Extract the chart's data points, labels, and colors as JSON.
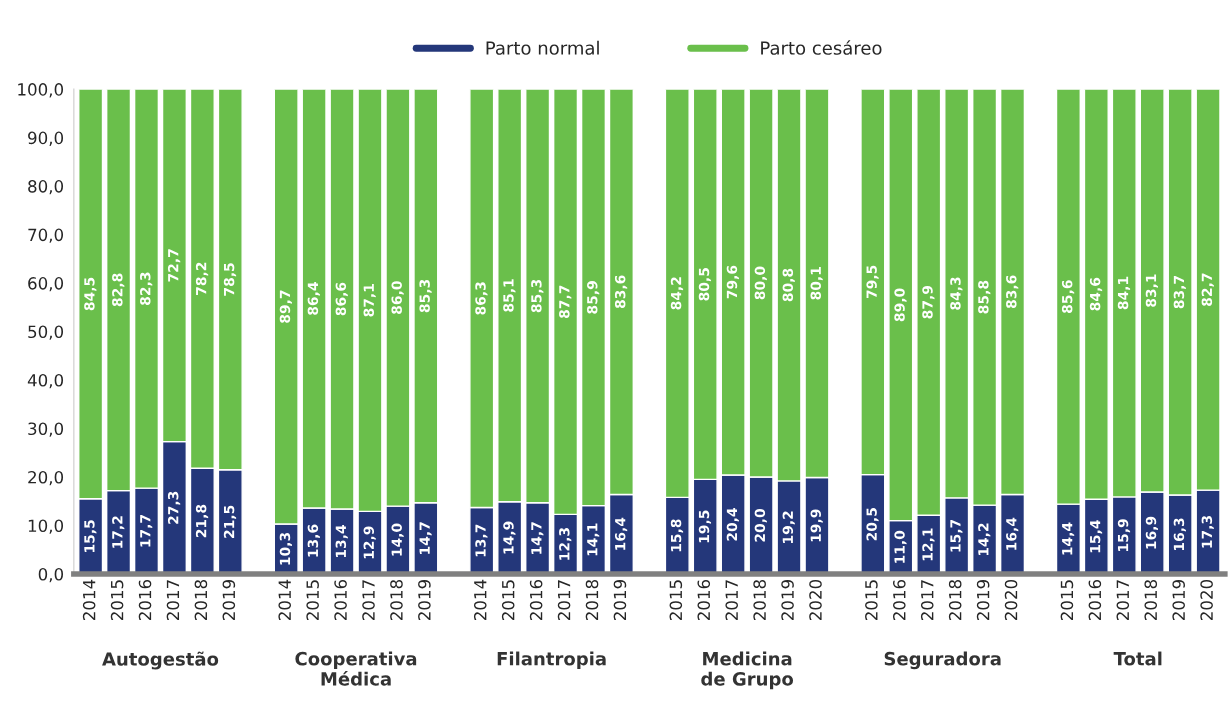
{
  "chart_data": {
    "type": "bar",
    "stacked": true,
    "legend": "top",
    "grid": false,
    "categories": [
      "2014",
      "2015",
      "2016",
      "2017",
      "2018",
      "2019",
      null,
      "2014",
      "2015",
      "2016",
      "2017",
      "2018",
      "2019",
      null,
      "2014",
      "2015",
      "2016",
      "2017",
      "2018",
      "2019",
      null,
      "2015",
      "2016",
      "2017",
      "2018",
      "2019",
      "2020",
      null,
      "2015",
      "2016",
      "2017",
      "2018",
      "2019",
      "2020",
      null,
      "2015",
      "2016",
      "2017",
      "2018",
      "2019",
      "2020"
    ],
    "series": [
      {
        "name": "Parto normal",
        "color": "#24377a",
        "values": [
          15.5,
          17.2,
          17.7,
          27.3,
          21.8,
          21.5,
          null,
          10.3,
          13.6,
          13.4,
          12.9,
          14.0,
          14.7,
          null,
          13.7,
          14.9,
          14.7,
          12.3,
          14.1,
          16.4,
          null,
          15.8,
          19.5,
          20.4,
          20.0,
          19.2,
          19.9,
          null,
          20.5,
          11.0,
          12.1,
          15.7,
          14.2,
          16.4,
          null,
          14.4,
          15.4,
          15.9,
          16.9,
          16.3,
          17.3
        ],
        "value_labels": [
          "15,5",
          "17,2",
          "17,7",
          "27,3",
          "21,8",
          "21,5",
          null,
          "10,3",
          "13,6",
          "13,4",
          "12,9",
          "14,0",
          "14,7",
          null,
          "13,7",
          "14,9",
          "14,7",
          "12,3",
          "14,1",
          "16,4",
          null,
          "15,8",
          "19,5",
          "20,4",
          "20,0",
          "19,2",
          "19,9",
          null,
          "20,5",
          "11,0",
          "12,1",
          "15,7",
          "14,2",
          "16,4",
          null,
          "14,4",
          "15,4",
          "15,9",
          "16,9",
          "16,3",
          "17,3"
        ]
      },
      {
        "name": "Parto cesáreo",
        "color": "#6abf4b",
        "values": [
          84.5,
          82.8,
          82.3,
          72.7,
          78.2,
          78.5,
          null,
          89.7,
          86.4,
          86.6,
          87.1,
          86.0,
          85.3,
          null,
          86.3,
          85.1,
          85.3,
          87.7,
          85.9,
          83.6,
          null,
          84.2,
          80.5,
          79.6,
          80.0,
          80.8,
          80.1,
          null,
          79.5,
          89.0,
          87.9,
          84.3,
          85.8,
          83.6,
          null,
          85.6,
          84.6,
          84.1,
          83.1,
          83.7,
          82.7
        ],
        "value_labels": [
          "84,5",
          "82,8",
          "82,3",
          "72,7",
          "78,2",
          "78,5",
          null,
          "89,7",
          "86,4",
          "86,6",
          "87,1",
          "86,0",
          "85,3",
          null,
          "86,3",
          "85,1",
          "85,3",
          "87,7",
          "85,9",
          "83,6",
          null,
          "84,2",
          "80,5",
          "79,6",
          "80,0",
          "80,8",
          "80,1",
          null,
          "79,5",
          "89,0",
          "87,9",
          "84,3",
          "85,8",
          "83,6",
          null,
          "85,6",
          "84,6",
          "84,1",
          "83,1",
          "83,7",
          "82,7"
        ]
      }
    ],
    "ylim": [
      0,
      100
    ],
    "yticks": [
      {
        "value": 0,
        "label": "0,0"
      },
      {
        "value": 10,
        "label": "10,0"
      },
      {
        "value": 20,
        "label": "20,0"
      },
      {
        "value": 30,
        "label": "30,0"
      },
      {
        "value": 40,
        "label": "40,0"
      },
      {
        "value": 50,
        "label": "50,0"
      },
      {
        "value": 60,
        "label": "60,0"
      },
      {
        "value": 70,
        "label": "70,0"
      },
      {
        "value": 80,
        "label": "80,0"
      },
      {
        "value": 90,
        "label": "90,0"
      },
      {
        "value": 100,
        "label": "100,0"
      }
    ],
    "annotations": [
      "Autogestão",
      "Cooperativa\nMédica",
      "Filantropia",
      "Medicina\nde Grupo",
      "Seguradora",
      "Total"
    ]
  }
}
